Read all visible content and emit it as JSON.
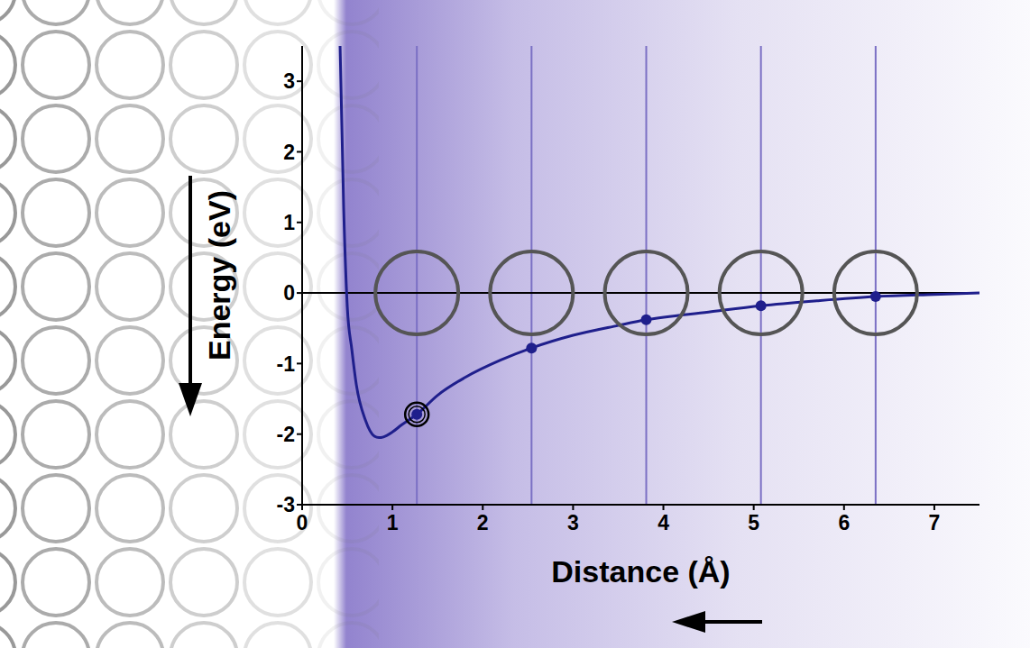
{
  "chart_data": {
    "type": "line",
    "x_label": "Distance (Å)",
    "y_label": "Energy (eV)",
    "xlim": [
      0,
      7.5
    ],
    "xticks": [
      0,
      1,
      2,
      3,
      4,
      5,
      6,
      7
    ],
    "ylim": [
      -3,
      3.5
    ],
    "yticks": [
      -3,
      -2,
      -1,
      0,
      1,
      2,
      3
    ],
    "grid": false,
    "series": [
      {
        "type": "line",
        "color": "#1f1f8c",
        "x": [
          0.42,
          0.46,
          0.5,
          0.55,
          0.6,
          0.7,
          0.8,
          0.85,
          0.9,
          1.0,
          1.1,
          1.27,
          1.5,
          1.8,
          2.2,
          2.54,
          3.0,
          3.5,
          3.81,
          4.5,
          5.08,
          5.7,
          6.35,
          7.0,
          7.5
        ],
        "values": [
          3.5,
          1.2,
          -0.2,
          -0.8,
          -1.3,
          -1.8,
          -2.03,
          -2.05,
          -2.04,
          -1.97,
          -1.87,
          -1.72,
          -1.45,
          -1.2,
          -0.95,
          -0.78,
          -0.6,
          -0.46,
          -0.38,
          -0.27,
          -0.18,
          -0.11,
          -0.05,
          -0.02,
          0.0
        ]
      },
      {
        "type": "scatter",
        "color": "#1f1f8c",
        "marker": "circle",
        "x": [
          1.27,
          2.54,
          3.81,
          5.08,
          6.35
        ],
        "values": [
          -1.72,
          -0.78,
          -0.38,
          -0.18,
          -0.05
        ]
      }
    ]
  }
}
